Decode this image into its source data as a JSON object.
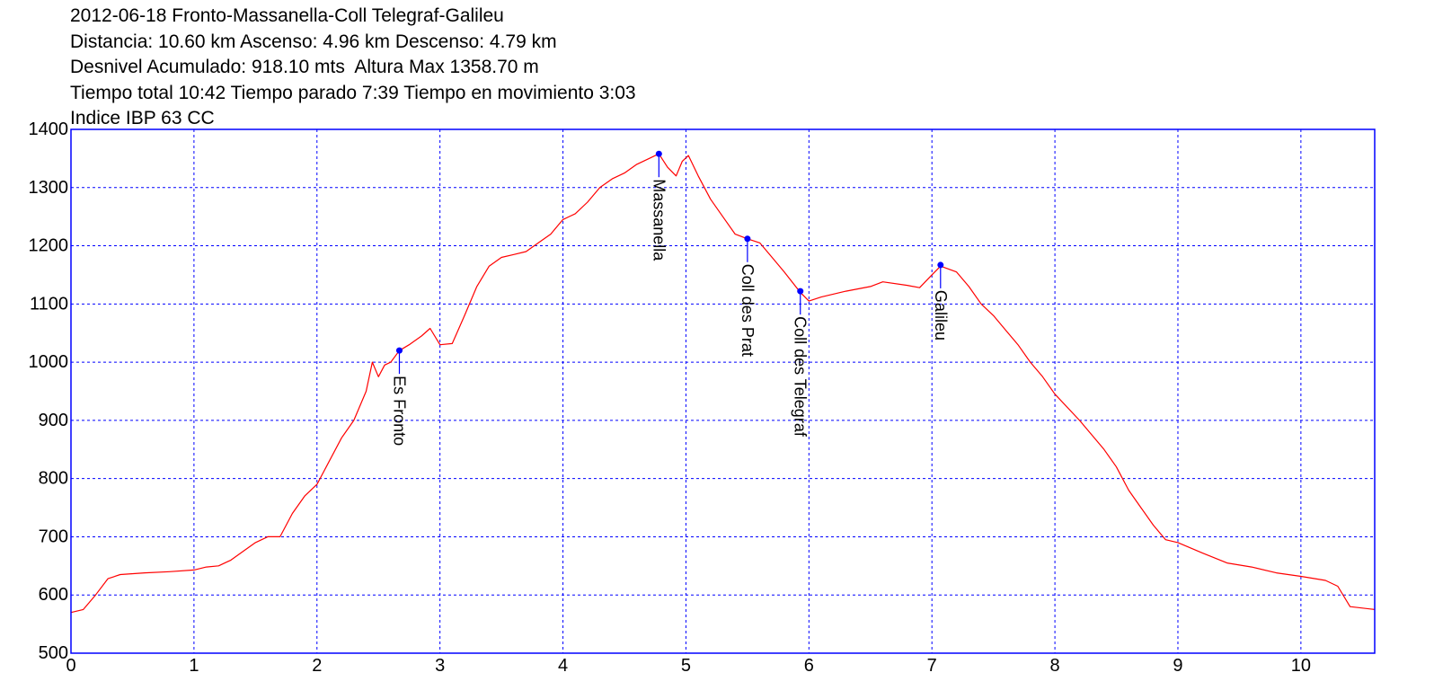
{
  "header": {
    "lines": [
      "2012-06-18 Fronto-Massanella-Coll Telegraf-Galileu",
      "Distancia: 10.60 km Ascenso: 4.96 km Descenso: 4.79 km",
      "Desnivel Acumulado: 918.10 mts  Altura Max 1358.70 m",
      "Tiempo total 10:42 Tiempo parado 7:39 Tiempo en movimiento 3:03",
      "Indice IBP 63 CC"
    ]
  },
  "chart_data": {
    "type": "line",
    "title": "2012-06-18 Fronto-Massanella-Coll Telegraf-Galileu",
    "xlabel": "",
    "ylabel": "",
    "xlim": [
      0,
      10.6
    ],
    "ylim": [
      500,
      1400
    ],
    "grid": true,
    "x_ticks": [
      0,
      1,
      2,
      3,
      4,
      5,
      6,
      7,
      8,
      9,
      10
    ],
    "y_ticks": [
      500,
      600,
      700,
      800,
      900,
      1000,
      1100,
      1200,
      1300,
      1400
    ],
    "colors": {
      "line": "#ff0000",
      "frame": "#0000ff",
      "grid": "#0000ff",
      "waypoint": "#0000ff"
    },
    "series": [
      {
        "x": [
          0,
          0.1,
          0.2,
          0.3,
          0.4,
          0.6,
          0.8,
          1.0,
          1.1,
          1.2,
          1.3,
          1.4,
          1.5,
          1.6,
          1.7,
          1.8,
          1.9,
          2.0,
          2.1,
          2.2,
          2.3,
          2.4,
          2.45,
          2.5,
          2.55,
          2.6,
          2.67,
          2.75,
          2.85,
          2.92,
          3.0,
          3.1,
          3.2,
          3.3,
          3.4,
          3.5,
          3.6,
          3.7,
          3.8,
          3.9,
          4.0,
          4.1,
          4.2,
          4.3,
          4.4,
          4.5,
          4.6,
          4.7,
          4.78,
          4.85,
          4.92,
          4.97,
          5.02,
          5.1,
          5.2,
          5.3,
          5.4,
          5.5,
          5.6,
          5.7,
          5.8,
          5.93,
          6.0,
          6.1,
          6.3,
          6.5,
          6.6,
          6.8,
          6.9,
          7.0,
          7.07,
          7.2,
          7.3,
          7.4,
          7.5,
          7.6,
          7.7,
          7.8,
          7.9,
          8.0,
          8.2,
          8.4,
          8.5,
          8.6,
          8.7,
          8.8,
          8.9,
          9.0,
          9.2,
          9.4,
          9.6,
          9.8,
          10.0,
          10.2,
          10.3,
          10.4,
          10.6
        ],
        "y": [
          570,
          575,
          600,
          628,
          635,
          638,
          640,
          643,
          648,
          650,
          660,
          675,
          690,
          700,
          700,
          740,
          770,
          790,
          830,
          870,
          900,
          950,
          1000,
          975,
          995,
          1000,
          1020,
          1030,
          1045,
          1058,
          1030,
          1032,
          1080,
          1130,
          1165,
          1180,
          1185,
          1190,
          1205,
          1220,
          1245,
          1255,
          1275,
          1300,
          1315,
          1325,
          1340,
          1350,
          1358,
          1335,
          1320,
          1345,
          1355,
          1320,
          1280,
          1250,
          1220,
          1212,
          1205,
          1180,
          1155,
          1120,
          1105,
          1112,
          1122,
          1130,
          1138,
          1132,
          1128,
          1150,
          1165,
          1155,
          1130,
          1100,
          1080,
          1055,
          1030,
          1000,
          975,
          945,
          900,
          850,
          820,
          780,
          750,
          720,
          695,
          690,
          672,
          655,
          648,
          638,
          632,
          625,
          615,
          580,
          575
        ]
      }
    ],
    "annotations": [
      {
        "label": "Es Fronto",
        "x": 2.67,
        "y": 1020
      },
      {
        "label": "Massanella",
        "x": 4.78,
        "y": 1358
      },
      {
        "label": "Coll des Prat",
        "x": 5.5,
        "y": 1212
      },
      {
        "label": "Coll des Telegraf",
        "x": 5.93,
        "y": 1122
      },
      {
        "label": "Galileu",
        "x": 7.07,
        "y": 1167
      }
    ]
  }
}
